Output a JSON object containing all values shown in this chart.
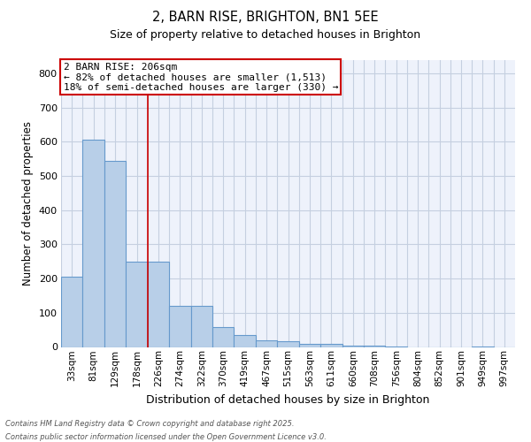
{
  "title": "2, BARN RISE, BRIGHTON, BN1 5EE",
  "subtitle": "Size of property relative to detached houses in Brighton",
  "xlabel": "Distribution of detached houses by size in Brighton",
  "ylabel": "Number of detached properties",
  "bar_color": "#b8cfe8",
  "bar_edge_color": "#6699cc",
  "background_color": "#eef2fb",
  "grid_color": "#c5cfe0",
  "categories": [
    "33sqm",
    "81sqm",
    "129sqm",
    "178sqm",
    "226sqm",
    "274sqm",
    "322sqm",
    "370sqm",
    "419sqm",
    "467sqm",
    "515sqm",
    "563sqm",
    "611sqm",
    "660sqm",
    "708sqm",
    "756sqm",
    "804sqm",
    "852sqm",
    "901sqm",
    "949sqm",
    "997sqm"
  ],
  "values": [
    205,
    605,
    545,
    250,
    250,
    120,
    120,
    58,
    35,
    20,
    18,
    10,
    8,
    5,
    3,
    2,
    0,
    0,
    0,
    2,
    0
  ],
  "ylim": [
    0,
    840
  ],
  "yticks": [
    0,
    100,
    200,
    300,
    400,
    500,
    600,
    700,
    800
  ],
  "property_line_idx": 3,
  "annotation_text": "2 BARN RISE: 206sqm\n← 82% of detached houses are smaller (1,513)\n18% of semi-detached houses are larger (330) →",
  "annotation_box_color": "#ffffff",
  "annotation_box_edge": "#cc0000",
  "footer_line1": "Contains HM Land Registry data © Crown copyright and database right 2025.",
  "footer_line2": "Contains public sector information licensed under the Open Government Licence v3.0."
}
